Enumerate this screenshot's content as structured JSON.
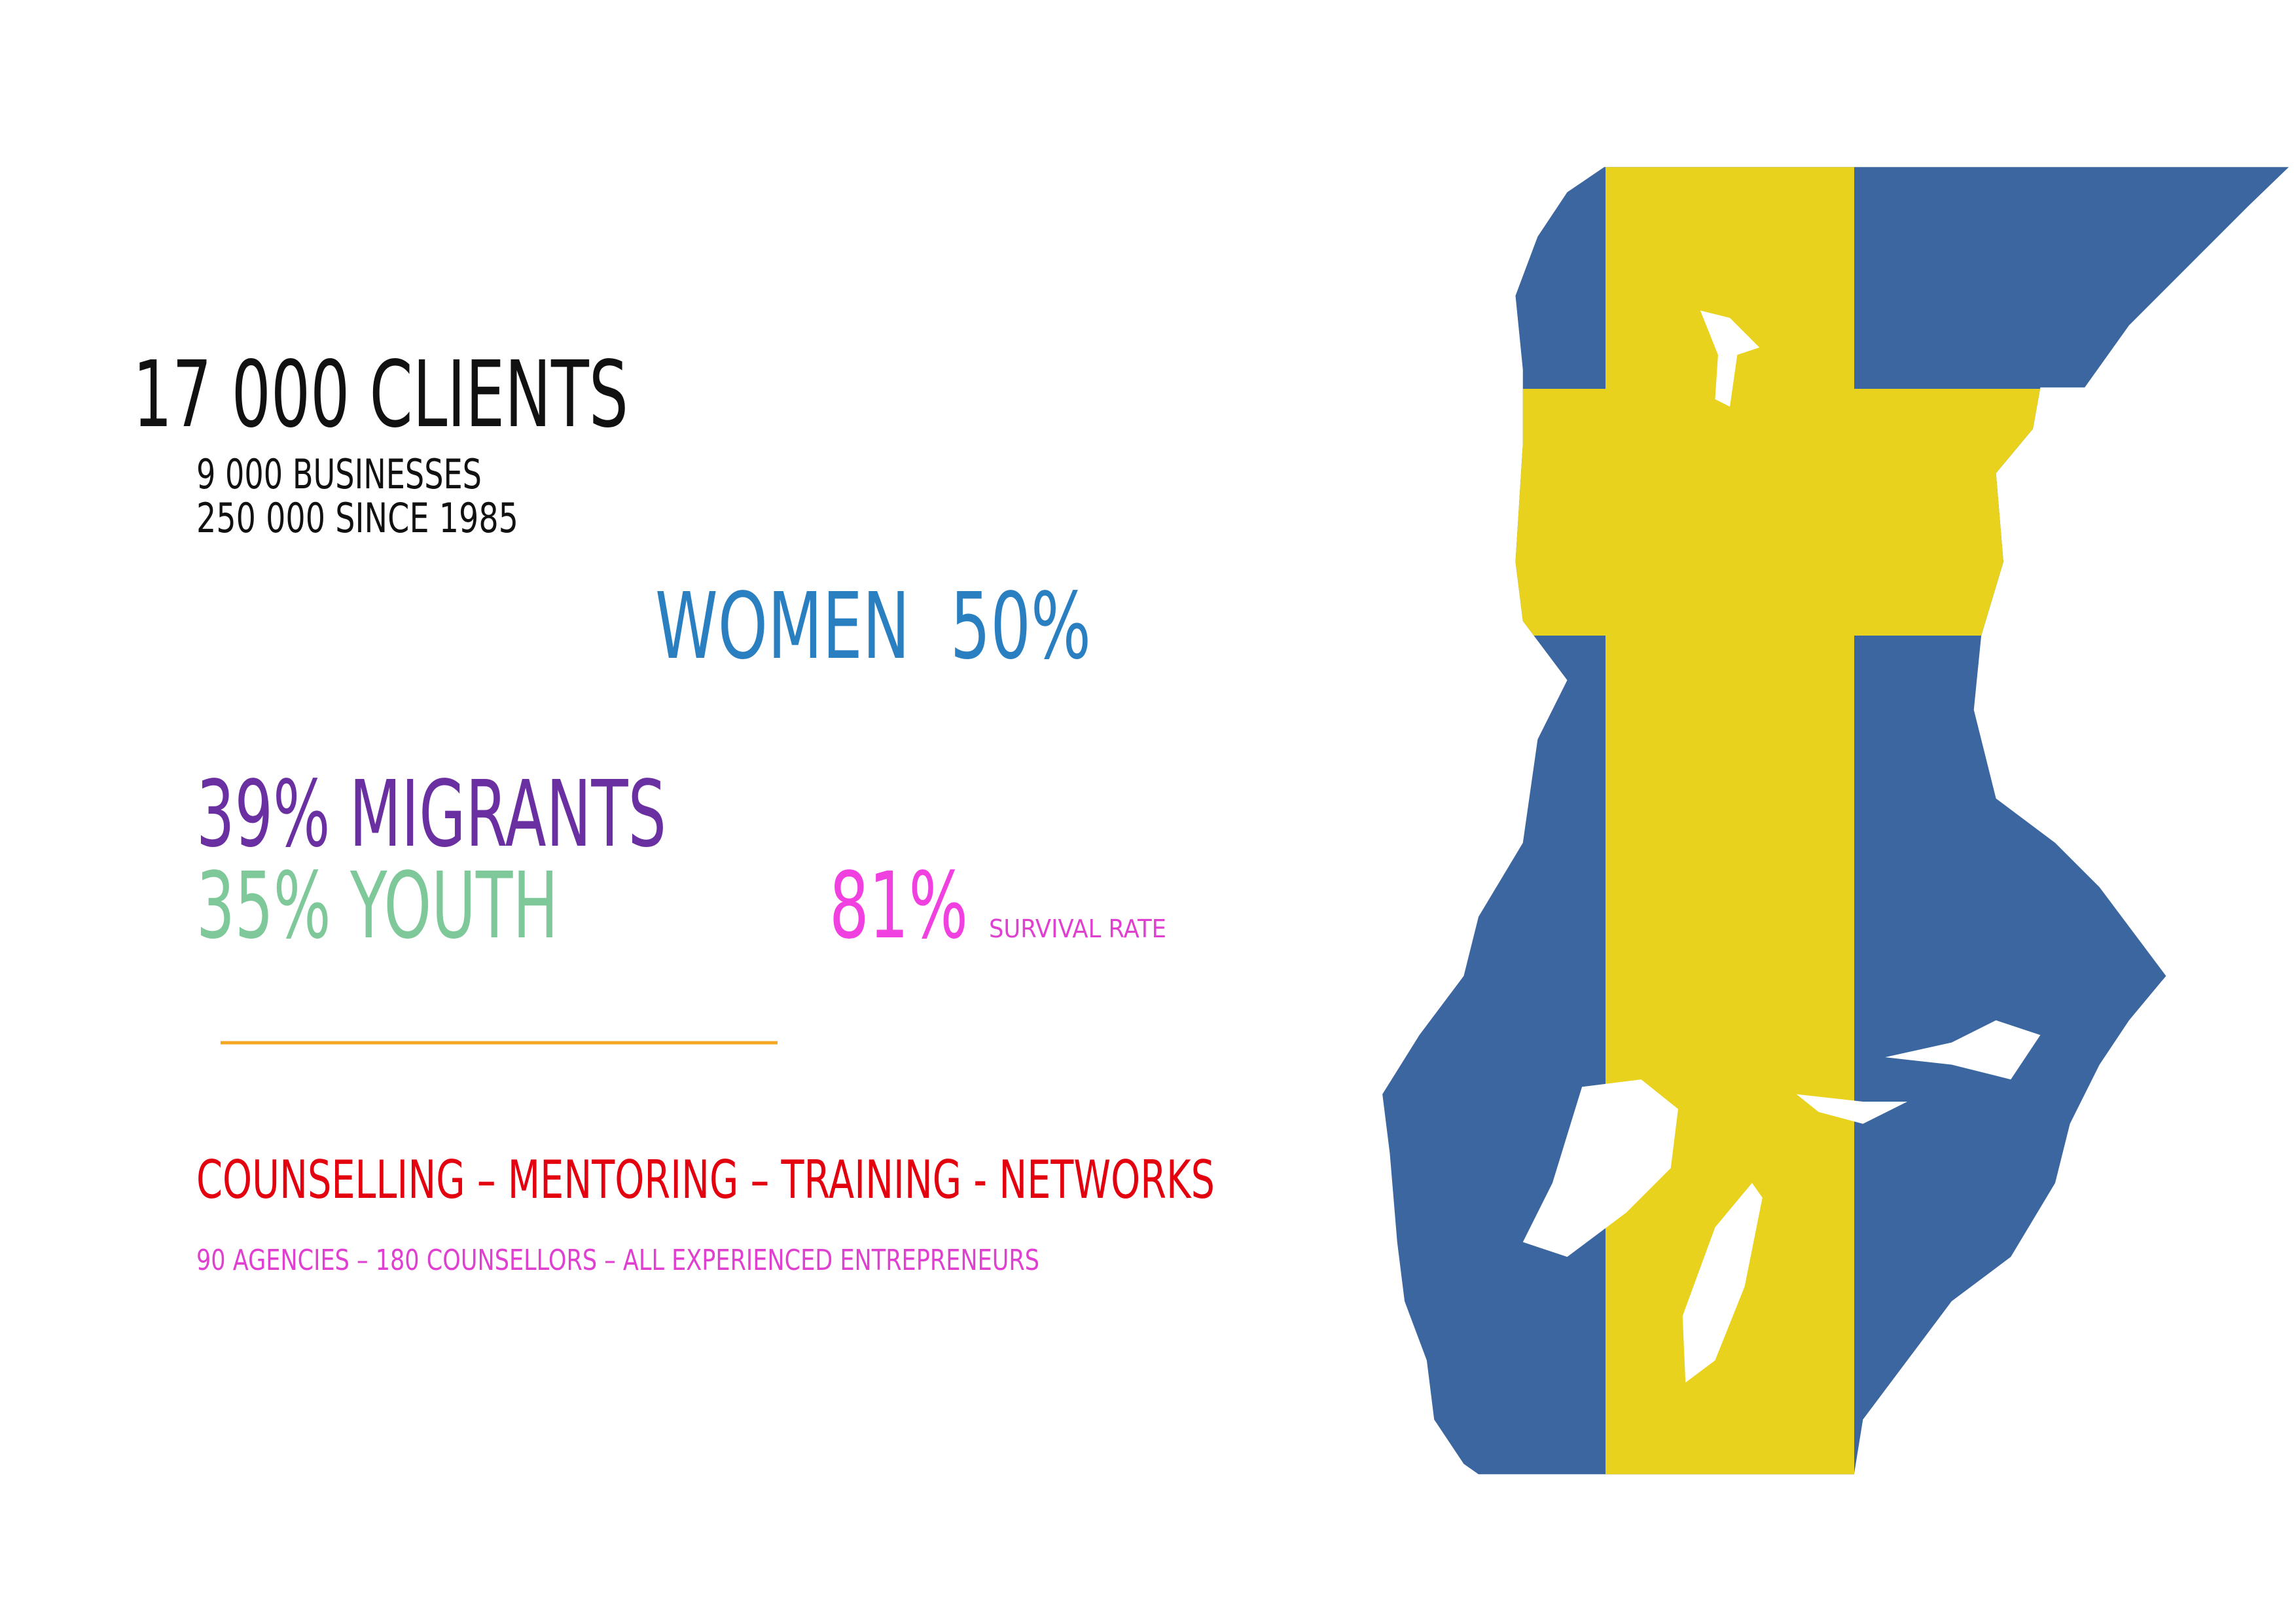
{
  "clients": {
    "title": "17 000 CLIENTS",
    "lines": [
      "9 000 BUSINESSES",
      "250 000 SINCE 1985"
    ]
  },
  "women": "WOMEN  50%",
  "migrants": "39% MIGRANTS",
  "youth": "35% YOUTH",
  "survival": {
    "value": "81%",
    "label": "SURVIVAL RATE"
  },
  "services": "COUNSELLING – MENTORING – TRAINING - NETWORKS",
  "network": "90 AGENCIES – 180 COUNSELLORS – ALL EXPERIENCED ENTREPRENEURS"
}
